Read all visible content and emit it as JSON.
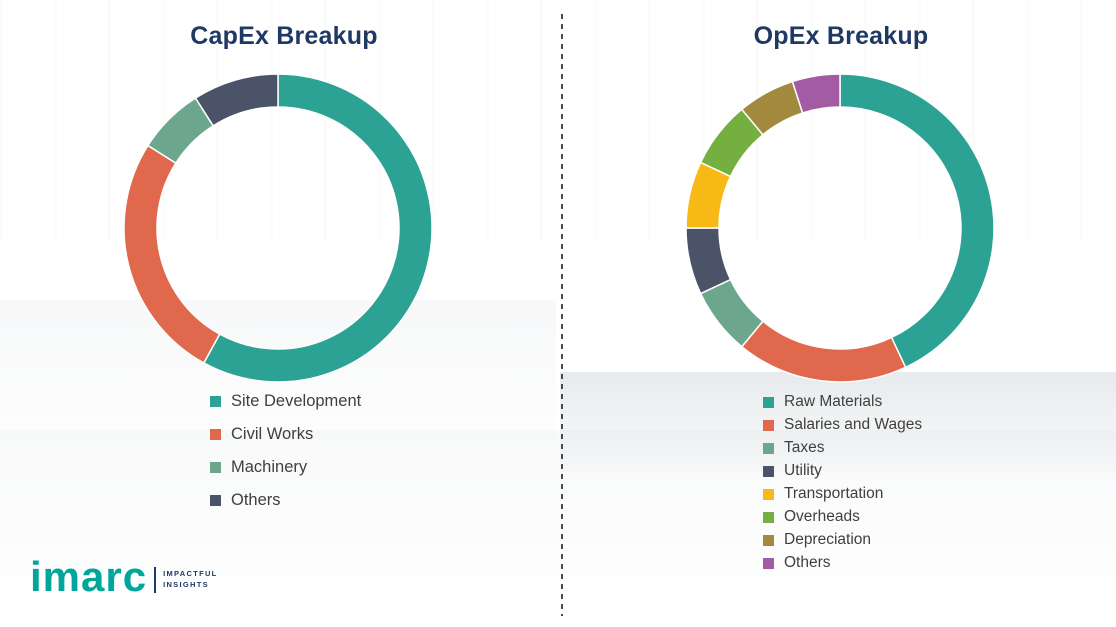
{
  "titles": {
    "capex": "CapEx Breakup",
    "opex": "OpEx Breakup"
  },
  "chart_data": [
    {
      "type": "pie",
      "subtype": "donut",
      "title": "CapEx Breakup",
      "legend_position": "bottom",
      "start_angle_deg": 0,
      "direction": "clockwise",
      "labels": [
        "Site Development",
        "Civil Works",
        "Machinery",
        "Others"
      ],
      "values": [
        58,
        26,
        7,
        9
      ],
      "unit": "percent",
      "colors": [
        "#2BA294",
        "#E0684D",
        "#6CA68C",
        "#4B5368"
      ]
    },
    {
      "type": "pie",
      "subtype": "donut",
      "title": "OpEx Breakup",
      "legend_position": "bottom",
      "start_angle_deg": 0,
      "direction": "clockwise",
      "labels": [
        "Raw Materials",
        "Salaries and Wages",
        "Taxes",
        "Utility",
        "Transportation",
        "Overheads",
        "Depreciation",
        "Others"
      ],
      "values": [
        43,
        18,
        7,
        7,
        7,
        7,
        6,
        5
      ],
      "unit": "percent",
      "colors": [
        "#2BA294",
        "#E0684D",
        "#6CA68C",
        "#4B5368",
        "#F6B915",
        "#74AF3F",
        "#A3893D",
        "#A35CA4"
      ]
    }
  ],
  "divider": {
    "style": "dashed-vertical",
    "color": "#4a4a4a"
  },
  "logo": {
    "brand": "imarc",
    "brand_color": "#00A69C",
    "tagline_line1": "IMPACTFUL",
    "tagline_line2": "INSIGHTS",
    "tagline_color": "#1F3864"
  },
  "theme": {
    "title_color": "#1F3864",
    "legend_text_color": "#3F3F3F",
    "background": "#ffffff"
  }
}
